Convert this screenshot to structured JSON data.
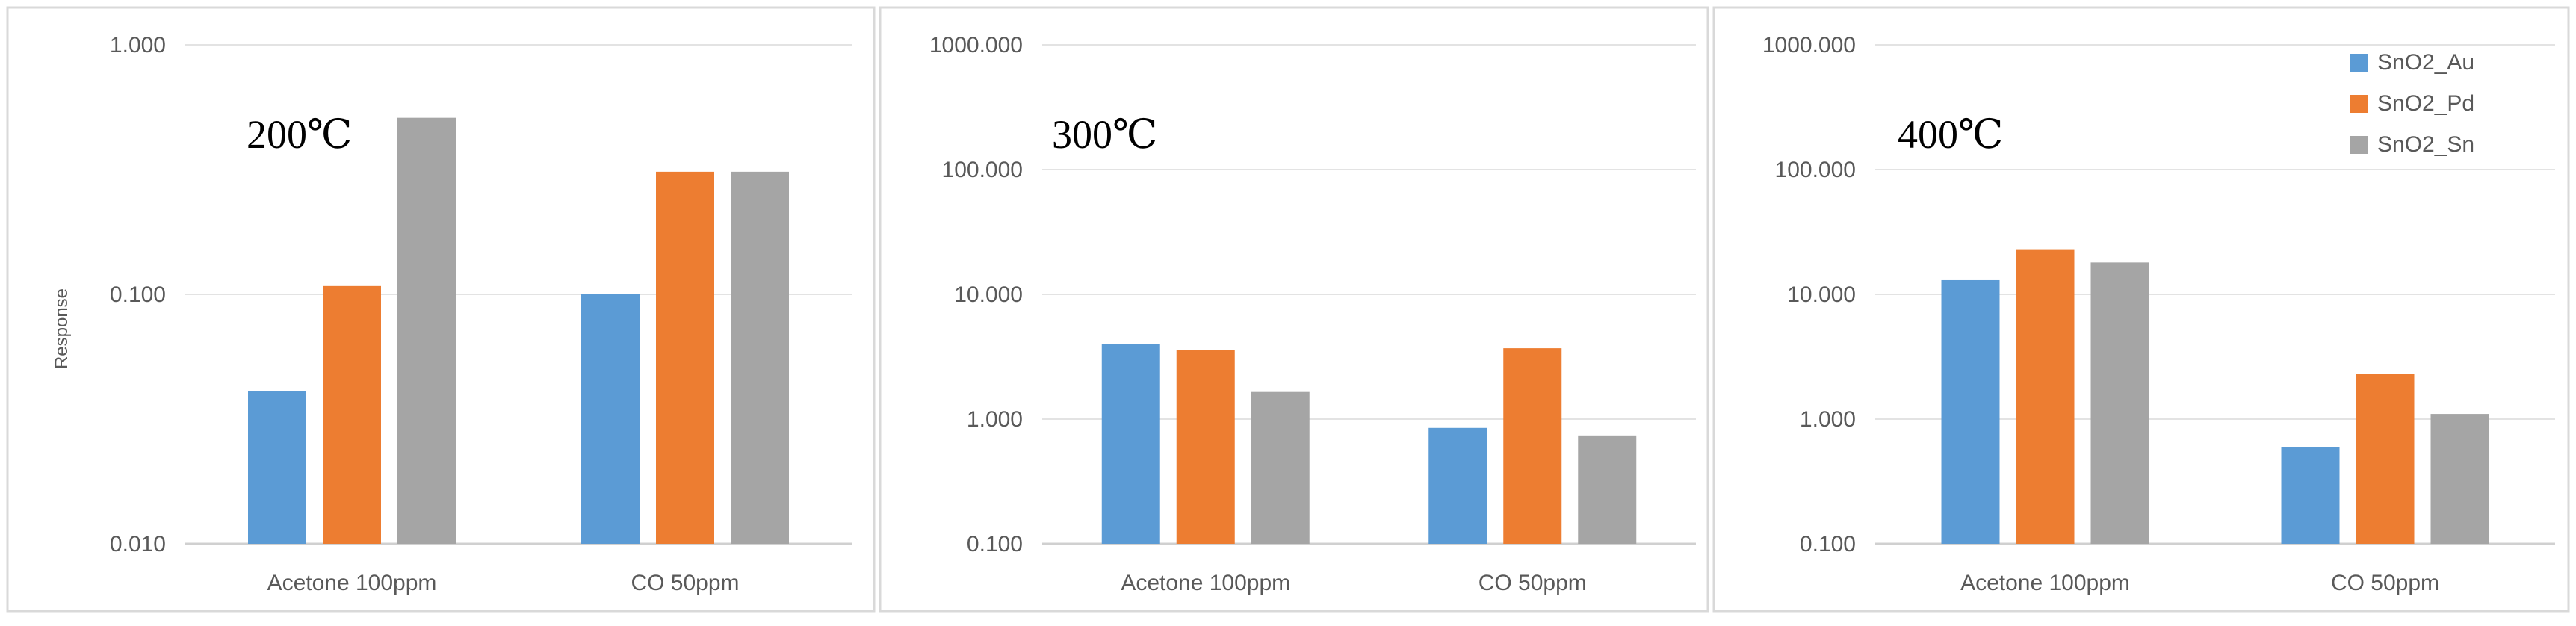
{
  "colors": {
    "SnO2_Au": "#5b9bd5",
    "SnO2_Pd": "#ed7d31",
    "SnO2_Sn": "#a5a5a5"
  },
  "legend": [
    "SnO2_Au",
    "SnO2_Pd",
    "SnO2_Sn"
  ],
  "chart_data": [
    {
      "type": "bar",
      "title": "200℃",
      "ylabel": "Response",
      "yscale": "log",
      "ylim": [
        0.01,
        1
      ],
      "yticks": [
        "1.000",
        "0.100",
        "0.010"
      ],
      "categories": [
        "Acetone 100ppm",
        "CO 50ppm"
      ],
      "series": [
        {
          "name": "SnO2_Au",
          "values": [
            0.041,
            0.1
          ]
        },
        {
          "name": "SnO2_Pd",
          "values": [
            0.108,
            0.31
          ]
        },
        {
          "name": "SnO2_Sn",
          "values": [
            0.51,
            0.31
          ]
        }
      ]
    },
    {
      "type": "bar",
      "title": "300℃",
      "ylabel": "",
      "yscale": "log",
      "ylim": [
        0.1,
        1000
      ],
      "yticks": [
        "1000.000",
        "100.000",
        "10.000",
        "1.000",
        "0.100"
      ],
      "categories": [
        "Acetone 100ppm",
        "CO 50ppm"
      ],
      "series": [
        {
          "name": "SnO2_Au",
          "values": [
            4.0,
            0.85
          ]
        },
        {
          "name": "SnO2_Pd",
          "values": [
            3.6,
            3.7
          ]
        },
        {
          "name": "SnO2_Sn",
          "values": [
            1.65,
            0.74
          ]
        }
      ]
    },
    {
      "type": "bar",
      "title": "400℃",
      "ylabel": "",
      "yscale": "log",
      "ylim": [
        0.1,
        1000
      ],
      "yticks": [
        "1000.000",
        "100.000",
        "10.000",
        "1.000",
        "0.100"
      ],
      "legend": "top-right",
      "categories": [
        "Acetone 100ppm",
        "CO 50ppm"
      ],
      "series": [
        {
          "name": "SnO2_Au",
          "values": [
            13.0,
            0.6
          ]
        },
        {
          "name": "SnO2_Pd",
          "values": [
            23.0,
            2.3
          ]
        },
        {
          "name": "SnO2_Sn",
          "values": [
            18.0,
            1.1
          ]
        }
      ]
    }
  ]
}
